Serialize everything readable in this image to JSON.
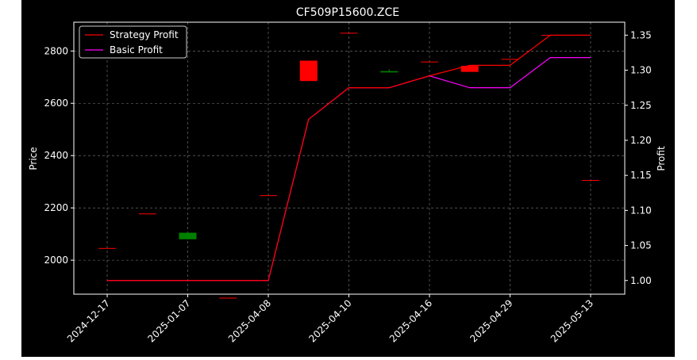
{
  "chart_data": {
    "type": "candlestick",
    "title": "CF509P15600.ZCE",
    "xlabel": "",
    "ylabel": "Price",
    "y2label": "Profit",
    "categories": [
      "2024-12-17",
      "",
      "2025-01-07",
      "",
      "2025-04-08",
      "",
      "2025-04-10",
      "",
      "2025-04-16",
      "",
      "2025-04-29",
      "",
      "2025-05-13"
    ],
    "tick_labels": [
      "2024-12-17",
      "2025-01-07",
      "2025-04-08",
      "2025-04-10",
      "2025-04-16",
      "2025-04-29",
      "2025-05-13"
    ],
    "ylim": [
      1870,
      2910
    ],
    "yticks": [
      2000,
      2200,
      2400,
      2600,
      2800
    ],
    "y2lim": [
      0.9805,
      1.3685
    ],
    "y2ticks": [
      "1.00",
      "1.05",
      "1.10",
      "1.15",
      "1.20",
      "1.25",
      "1.30",
      "1.35"
    ],
    "grid": true,
    "legend_position": "top-left",
    "candles": [
      {
        "open": 2045,
        "close": 2045,
        "high": 2045,
        "low": 2045
      },
      {
        "open": 2177,
        "close": 2177,
        "high": 2177,
        "low": 2177
      },
      {
        "open": 2105,
        "close": 2080,
        "high": 2105,
        "low": 2080
      },
      {
        "open": 1855,
        "close": 1855,
        "high": 1855,
        "low": 1855
      },
      {
        "open": 2247,
        "close": 2247,
        "high": 2247,
        "low": 2247
      },
      {
        "open": 2685,
        "close": 2763,
        "high": 2763,
        "low": 2685
      },
      {
        "open": 2868,
        "close": 2868,
        "high": 2868,
        "low": 2868
      },
      {
        "open": 2723,
        "close": 2718,
        "high": 2730,
        "low": 2718
      },
      {
        "open": 2758,
        "close": 2758,
        "high": 2758,
        "low": 2758
      },
      {
        "open": 2720,
        "close": 2743,
        "high": 2743,
        "low": 2720
      },
      {
        "open": 2768,
        "close": 2768,
        "high": 2768,
        "low": 2768
      },
      {
        "open": 2860,
        "close": 2860,
        "high": 2860,
        "low": 2860
      },
      {
        "open": 2305,
        "close": 2305,
        "high": 2305,
        "low": 2305
      }
    ],
    "series": [
      {
        "name": "Strategy Profit",
        "color": "#ff0000",
        "values": [
          1.0,
          1.0,
          1.0,
          1.0,
          1.0,
          1.23,
          1.275,
          1.275,
          1.292,
          1.307,
          1.307,
          1.35,
          1.35
        ]
      },
      {
        "name": "Basic Profit",
        "color": "#ff00ff",
        "values": [
          1.0,
          1.0,
          1.0,
          1.0,
          1.0,
          1.23,
          1.275,
          1.275,
          1.292,
          1.275,
          1.275,
          1.318,
          1.318
        ]
      }
    ],
    "colors": {
      "up": "#ff0000",
      "down": "#008000",
      "background": "#000000",
      "axis": "#ffffff",
      "grid": "#808080"
    }
  }
}
